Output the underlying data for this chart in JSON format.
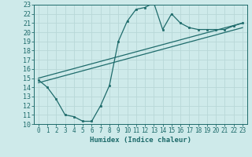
{
  "xlabel": "Humidex (Indice chaleur)",
  "bg_color": "#ceeaea",
  "line_color": "#1e6b6b",
  "grid_color": "#b8d8d8",
  "xlim": [
    -0.5,
    23.5
  ],
  "ylim": [
    10,
    23
  ],
  "xticks": [
    0,
    1,
    2,
    3,
    4,
    5,
    6,
    7,
    8,
    9,
    10,
    11,
    12,
    13,
    14,
    15,
    16,
    17,
    18,
    19,
    20,
    21,
    22,
    23
  ],
  "yticks": [
    10,
    11,
    12,
    13,
    14,
    15,
    16,
    17,
    18,
    19,
    20,
    21,
    22,
    23
  ],
  "curve1_x": [
    0,
    1,
    2,
    3,
    4,
    5,
    6,
    7,
    8,
    9,
    10,
    11,
    12,
    13,
    14,
    15,
    16,
    17,
    18,
    19,
    20,
    21,
    22,
    23
  ],
  "curve1_y": [
    14.8,
    14.0,
    12.7,
    11.0,
    10.8,
    10.3,
    10.3,
    12.0,
    14.2,
    19.0,
    21.2,
    22.5,
    22.7,
    23.2,
    20.3,
    22.0,
    21.0,
    20.5,
    20.3,
    20.3,
    20.3,
    20.3,
    20.7,
    21.0
  ],
  "line2_x": [
    0,
    23
  ],
  "line2_y": [
    15.0,
    21.0
  ],
  "line3_x": [
    0,
    23
  ],
  "line3_y": [
    14.5,
    20.5
  ]
}
